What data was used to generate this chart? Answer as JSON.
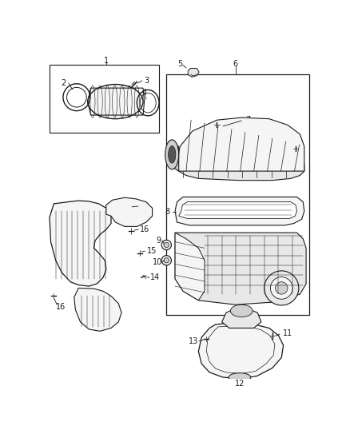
{
  "bg_color": "#ffffff",
  "line_color": "#1a1a1a",
  "figsize": [
    4.38,
    5.33
  ],
  "dpi": 100,
  "lw": 0.7,
  "fill_light": "#f5f5f5",
  "fill_mid": "#e8e8e8",
  "fill_dark": "#d0d0d0"
}
